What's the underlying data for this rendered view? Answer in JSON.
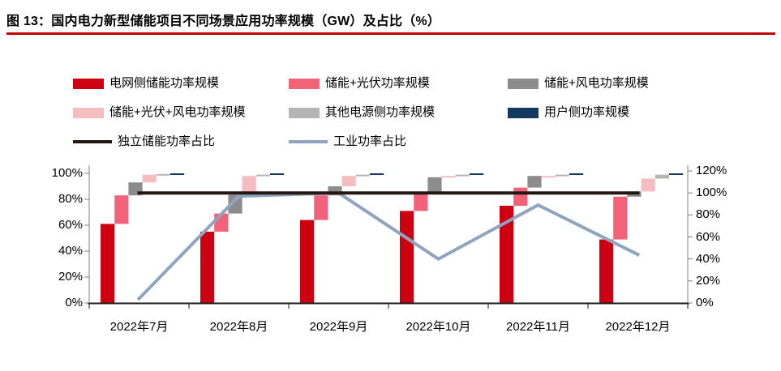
{
  "figure": {
    "title": "图 13：国内电力新型储能项目不同场景应用功率规模（GW）及占比（%）",
    "accent_color": "#C00000"
  },
  "chart_data": {
    "type": "bar",
    "subtype": "stacked-waterfall-with-lines",
    "categories": [
      "2022年7月",
      "2022年8月",
      "2022年9月",
      "2022年10月",
      "2022年11月",
      "2022年12月"
    ],
    "series": [
      {
        "name": "电网侧储能功率规模",
        "kind": "bar",
        "color": "#CC0011",
        "values": [
          61,
          55,
          64,
          71,
          75,
          49
        ]
      },
      {
        "name": "储能+光伏功率规模",
        "kind": "bar",
        "color": "#F2637A",
        "values": [
          22,
          14,
          19,
          14,
          14,
          33
        ]
      },
      {
        "name": "储能+风电功率规模",
        "kind": "bar",
        "color": "#8C8C8C",
        "values": [
          10,
          14.5,
          7,
          12,
          9,
          4
        ]
      },
      {
        "name": "储能+光伏+风电功率规模",
        "kind": "bar",
        "color": "#F6BDC1",
        "values": [
          6,
          14.5,
          8,
          1,
          0,
          10
        ]
      },
      {
        "name": "其他电源侧功率规模",
        "kind": "bar",
        "color": "#B5B5B5",
        "values": [
          0.5,
          1,
          1,
          1,
          1,
          3
        ]
      },
      {
        "name": "用户侧功率规模",
        "kind": "bar",
        "color": "#12395F",
        "values": [
          0.5,
          1,
          1,
          1,
          1,
          1
        ]
      },
      {
        "name": "独立储能功率占比",
        "kind": "line",
        "axis": "right",
        "color": "#241713",
        "values": [
          100,
          100,
          100,
          100,
          100,
          100
        ]
      },
      {
        "name": "工业功率占比",
        "kind": "line",
        "axis": "right",
        "color": "#8FA4BF",
        "values": [
          4,
          97,
          100,
          40,
          89,
          44
        ]
      }
    ],
    "left_axis": {
      "min": 0,
      "max": 100,
      "ticks": [
        "0%",
        "20%",
        "40%",
        "60%",
        "80%",
        "100%"
      ]
    },
    "right_axis": {
      "min": 0,
      "max": 120,
      "ticks": [
        "0%",
        "20%",
        "40%",
        "60%",
        "80%",
        "100%",
        "120%"
      ]
    },
    "legend_position": "top",
    "grid": false
  }
}
